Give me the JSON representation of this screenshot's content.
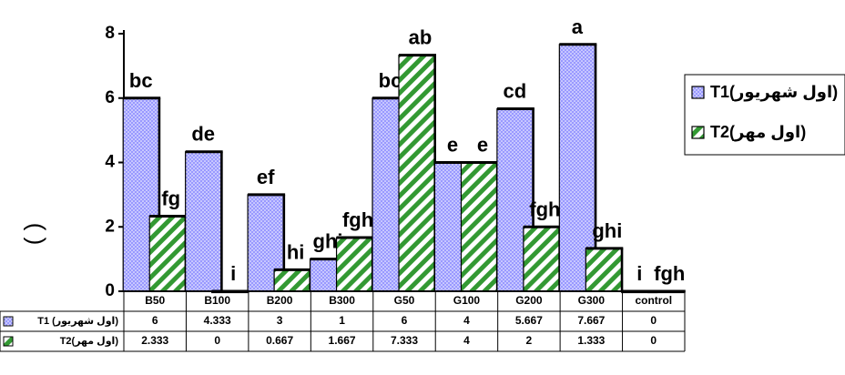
{
  "chart_data": {
    "type": "bar",
    "categories": [
      "B50",
      "B100",
      "B200",
      "B300",
      "G50",
      "G100",
      "G200",
      "G300",
      "control"
    ],
    "series": [
      {
        "name": "T1(اول شهریور)",
        "table_label": "T1 (اول شهریور)",
        "color": "#9999ff",
        "pattern": "dots",
        "values": [
          6,
          4.333,
          3,
          1,
          6,
          4,
          5.667,
          7.667,
          0
        ],
        "value_text": [
          "6",
          "4.333",
          "3",
          "1",
          "6",
          "4",
          "5.667",
          "7.667",
          "0"
        ],
        "letters": [
          "bc",
          "de",
          "ef",
          "ghi",
          "bc",
          "e",
          "cd",
          "a",
          "i"
        ]
      },
      {
        "name": "T2(اول مهر)",
        "table_label": "T2(اول مهر)",
        "color": "#339933",
        "pattern": "diagonal",
        "values": [
          2.333,
          0,
          0.667,
          1.667,
          7.333,
          4,
          2,
          1.333,
          0
        ],
        "value_text": [
          "2.333",
          "0",
          "0.667",
          "1.667",
          "7.333",
          "4",
          "2",
          "1.333",
          "0"
        ],
        "letters": [
          "fg",
          "i",
          "hi",
          "fgh",
          "ab",
          "e",
          "fgh",
          "ghi",
          "fgh"
        ]
      }
    ],
    "ylim": [
      0,
      8
    ],
    "yticks": [
      "0",
      "2",
      "4",
      "6",
      "8"
    ],
    "ylabel": "( )",
    "legend_position": "right",
    "grid": false,
    "data_table": true
  }
}
